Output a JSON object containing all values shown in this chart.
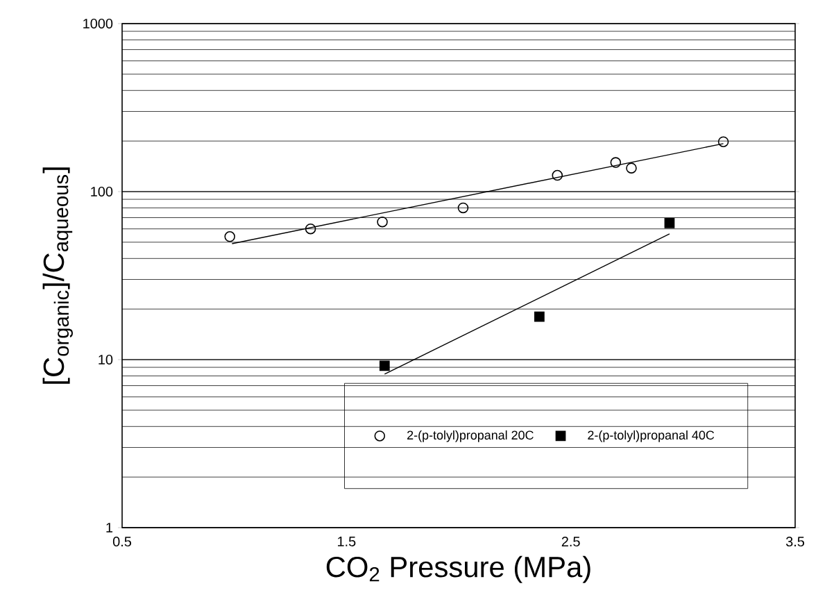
{
  "chart_data": {
    "type": "scatter",
    "xlabel": "CO$_{2}$ Pressure (MPa)",
    "ylabel": "[C$_{organic}$]/C$_{aqueous}$]",
    "xlim": [
      0.5,
      3.5
    ],
    "xticks": [
      0.5,
      1.5,
      2.5,
      3.5
    ],
    "ylim": [
      1,
      1000
    ],
    "yticks": [
      1,
      10,
      100,
      1000
    ],
    "log": "y",
    "grid": "y",
    "legend": "bottom right",
    "series": [
      {
        "name": "2-(p-tolyl)propanal  20C",
        "marker": "circle",
        "color": "#000000",
        "x": [
          0.98,
          1.34,
          1.66,
          2.02,
          2.44,
          2.7,
          2.77,
          3.18
        ],
        "values": [
          54,
          60,
          66,
          80,
          125,
          149,
          138,
          198
        ]
      },
      {
        "name": "2-(p-tolyl)propanal  40C",
        "marker": "square",
        "color": "#000000",
        "x": [
          1.67,
          2.36,
          2.94
        ],
        "values": [
          9.2,
          18,
          65
        ]
      },
      {
        "type": "line",
        "marker": "none",
        "color": "#000000",
        "x": [
          0.99,
          3.18
        ],
        "values": [
          49,
          193
        ]
      },
      {
        "type": "line",
        "marker": "none",
        "color": "#000000",
        "x": [
          1.67,
          2.94
        ],
        "values": [
          8.2,
          56
        ]
      }
    ]
  }
}
